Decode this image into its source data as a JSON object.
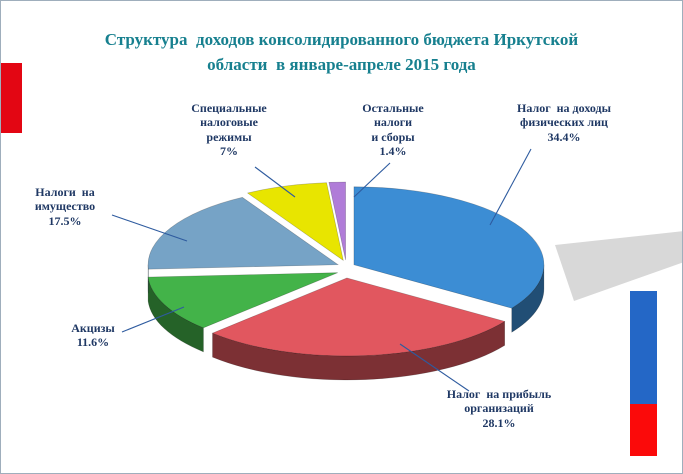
{
  "title": {
    "text": "Структура  доходов консолидированного бюджета Иркутской\nобласти  в январе-апреле 2015 года",
    "color": "#17808F"
  },
  "decor": {
    "left_red_bar_color": "#E30613",
    "right_blue_bar_color": "#2467C6",
    "right_red_bar_color": "#FB0A0A",
    "backdrop_color": "#D8D8D8",
    "border_color": "#9FAEBC"
  },
  "chart_data": {
    "type": "pie",
    "style": "3d-exploded",
    "title": "Структура доходов консолидированного бюджета Иркутской области в январе-апреле 2015 года",
    "legend_position": "callout-labels-with-leader-lines",
    "label_color": "#1F3864",
    "leader_line_color": "#2E5B9F",
    "total": 100,
    "slices": [
      {
        "name": "personal-income-tax",
        "label": "Налог на доходы физических лиц",
        "value": 34.4,
        "pct_label": "34.4%",
        "color": "#3C8DD4",
        "callout_lines": [
          "Налог  на доходы",
          "физических лиц",
          "34.4%"
        ]
      },
      {
        "name": "corporate-profit-tax",
        "label": "Налог на прибыль организаций",
        "value": 28.1,
        "pct_label": "28.1%",
        "color": "#E1575F",
        "callout_lines": [
          "Налог  на прибыль",
          "организаций",
          "28.1%"
        ]
      },
      {
        "name": "excises",
        "label": "Акцизы",
        "value": 11.6,
        "pct_label": "11.6%",
        "color": "#43B349",
        "callout_lines": [
          "Акцизы",
          "11.6%"
        ]
      },
      {
        "name": "property-taxes",
        "label": "Налоги на имущество",
        "value": 17.5,
        "pct_label": "17.5%",
        "color": "#76A3C6",
        "callout_lines": [
          "Налоги  на",
          "имущество",
          "17.5%"
        ]
      },
      {
        "name": "special-tax-regimes",
        "label": "Специальные налоговые режимы",
        "value": 7,
        "pct_label": "7%",
        "color": "#E8E500",
        "callout_lines": [
          "Специальные",
          "налоговые",
          "режимы",
          "7%"
        ]
      },
      {
        "name": "other-taxes",
        "label": "Остальные налоги и сборы",
        "value": 1.4,
        "pct_label": "1.4%",
        "color": "#B07CD8",
        "callout_lines": [
          "Остальные",
          "налоги",
          "и сборы",
          "1.4%"
        ]
      }
    ]
  }
}
